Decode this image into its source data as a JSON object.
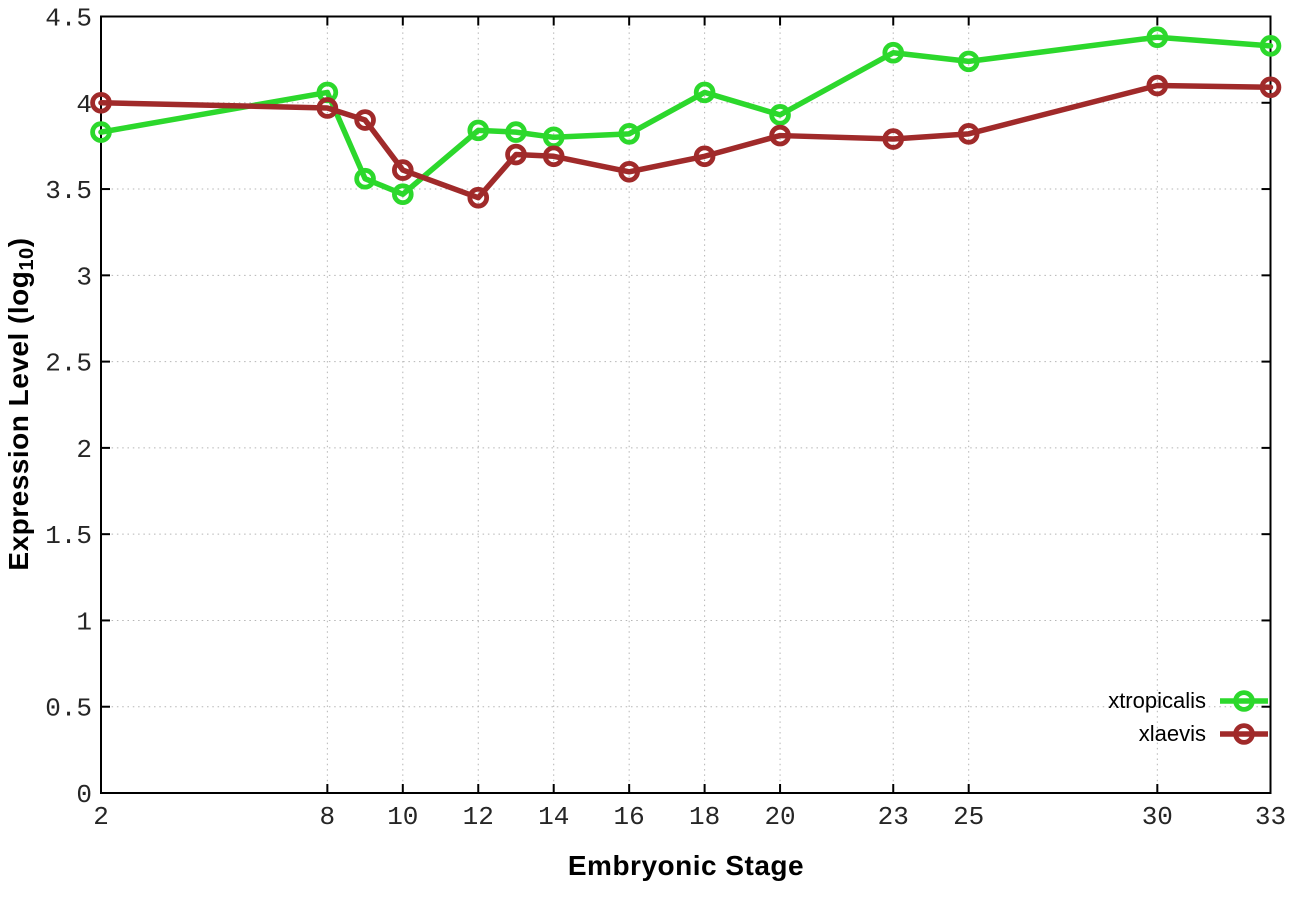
{
  "figure": {
    "background": "#ffffff"
  },
  "chart_data": {
    "type": "line",
    "title": "",
    "xlabel": "Embryonic Stage",
    "ylabel": "Expression Level (log10)",
    "ylabel_parts": {
      "prefix": "Expression Level (log",
      "sub": "10",
      "suffix": ")"
    },
    "x": [
      2,
      8,
      9,
      10,
      12,
      13,
      14,
      16,
      18,
      20,
      23,
      25,
      30,
      33
    ],
    "xlim": [
      2,
      33
    ],
    "ylim": [
      0,
      4.5
    ],
    "x_ticks": {
      "values": [
        2,
        8,
        10,
        12,
        14,
        16,
        18,
        20,
        23,
        25,
        30,
        33
      ],
      "labels": [
        "2",
        "8",
        "10",
        "12",
        "14",
        "16",
        "18",
        "20",
        "23",
        "25",
        "30",
        "33"
      ]
    },
    "y_ticks": {
      "values": [
        0,
        0.5,
        1,
        1.5,
        2,
        2.5,
        3,
        3.5,
        4,
        4.5
      ],
      "labels": [
        "0",
        "0.5",
        "1",
        "1.5",
        "2",
        "2.5",
        "3",
        "3.5",
        "4",
        "4.5"
      ]
    },
    "grid": true,
    "legend_position": "inside-bottom-right",
    "series": [
      {
        "name": "xtropicalis",
        "color": "#2cd82c",
        "marker": "open-circle",
        "values": [
          3.83,
          4.06,
          3.56,
          3.47,
          3.84,
          3.83,
          3.8,
          3.82,
          4.06,
          3.93,
          4.29,
          4.24,
          4.38,
          4.33
        ]
      },
      {
        "name": "xlaevis",
        "color": "#a02a2a",
        "marker": "open-circle",
        "values": [
          4.0,
          3.97,
          3.9,
          3.61,
          3.45,
          3.7,
          3.69,
          3.6,
          3.69,
          3.81,
          3.79,
          3.82,
          4.1,
          4.09
        ]
      }
    ],
    "style": {
      "axis_color": "#000000",
      "grid_color": "#b5b5b5",
      "tick_label_color": "#262626",
      "line_width": 5.5,
      "marker_radius": 8.4,
      "marker_stroke": 4.8
    }
  }
}
